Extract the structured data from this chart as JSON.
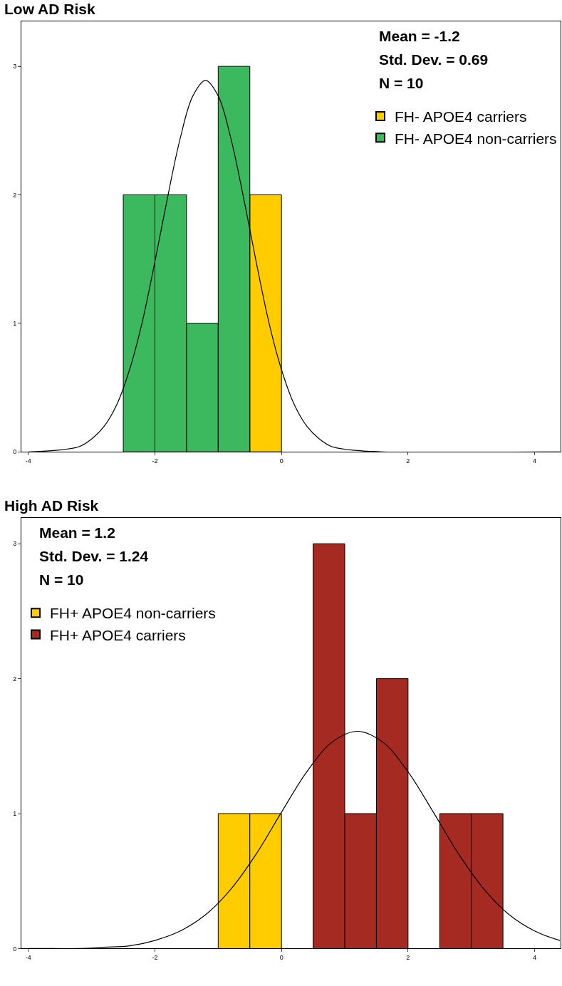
{
  "chart_data": [
    {
      "type": "histogram",
      "title": "Low AD Risk",
      "annotations": [
        "Mean = -1.2",
        "Std. Dev. = 0.69",
        "N = 10"
      ],
      "legend": "top right",
      "xlim": [
        -4.11,
        4.41
      ],
      "xticks": [
        -4,
        -2,
        0,
        2,
        4
      ],
      "ylim": [
        0,
        3.35
      ],
      "yticks": [
        0,
        1,
        2,
        3
      ],
      "series": [
        {
          "name": "FH- APOE4 carriers",
          "color": "#ffcc00",
          "bins": [
            -0.5,
            0
          ],
          "values": [
            2
          ]
        },
        {
          "name": "FH- APOE4 non-carriers",
          "color": "#3cb95f",
          "bins": [
            -2.5,
            -2,
            -1.5,
            -1,
            -0.5
          ],
          "values": [
            2,
            2,
            1,
            3
          ]
        },
        {
          "type": "line",
          "color": "#000000",
          "x": [
            -4.0,
            -3.6,
            -3.2,
            -3.0,
            -2.8,
            -2.6,
            -2.4,
            -2.2,
            -2.0,
            -1.8,
            -1.6,
            -1.4,
            -1.2,
            -1.0,
            -0.8,
            -0.6,
            -0.4,
            -0.2,
            0.0,
            0.2,
            0.4,
            0.6,
            0.8,
            1.2,
            1.6,
            4.4
          ],
          "values": [
            0,
            0.01,
            0.04,
            0.1,
            0.2,
            0.37,
            0.64,
            1.01,
            1.48,
            1.98,
            2.44,
            2.77,
            2.89,
            2.77,
            2.44,
            1.98,
            1.48,
            1.01,
            0.64,
            0.37,
            0.2,
            0.1,
            0.04,
            0.01,
            0,
            0
          ]
        }
      ]
    },
    {
      "type": "histogram",
      "title": "High AD Risk",
      "annotations": [
        "Mean = 1.2",
        "Std. Dev. = 1.24",
        "N = 10"
      ],
      "legend": "top left",
      "xlim": [
        -4.11,
        4.41
      ],
      "xticks": [
        -4,
        -2,
        0,
        2,
        4
      ],
      "ylim": [
        0,
        3.19
      ],
      "yticks": [
        0,
        1,
        2,
        3
      ],
      "series": [
        {
          "name": "FH+ APOE4 non-carriers",
          "color": "#ffcc00",
          "bins": [
            -1,
            -0.5,
            0
          ],
          "values": [
            1,
            1
          ]
        },
        {
          "name": "FH+ APOE4 carriers",
          "color": "#a52a22",
          "bins": [
            0.5,
            1,
            1.5,
            2,
            2.5,
            3,
            3.5
          ],
          "values": [
            3,
            1,
            2,
            0,
            1,
            1
          ]
        },
        {
          "type": "line",
          "color": "#000000",
          "x": [
            -4.0,
            -3.6,
            -3.2,
            -2.8,
            -2.4,
            -2.0,
            -1.6,
            -1.2,
            -0.8,
            -0.4,
            0.0,
            0.4,
            0.8,
            1.2,
            1.6,
            2.0,
            2.4,
            2.8,
            3.2,
            3.6,
            4.0,
            4.4
          ],
          "values": [
            0,
            0,
            0,
            0.01,
            0.02,
            0.06,
            0.13,
            0.25,
            0.44,
            0.7,
            1.01,
            1.31,
            1.53,
            1.61,
            1.53,
            1.31,
            1.01,
            0.7,
            0.44,
            0.25,
            0.13,
            0.06
          ]
        }
      ]
    }
  ]
}
